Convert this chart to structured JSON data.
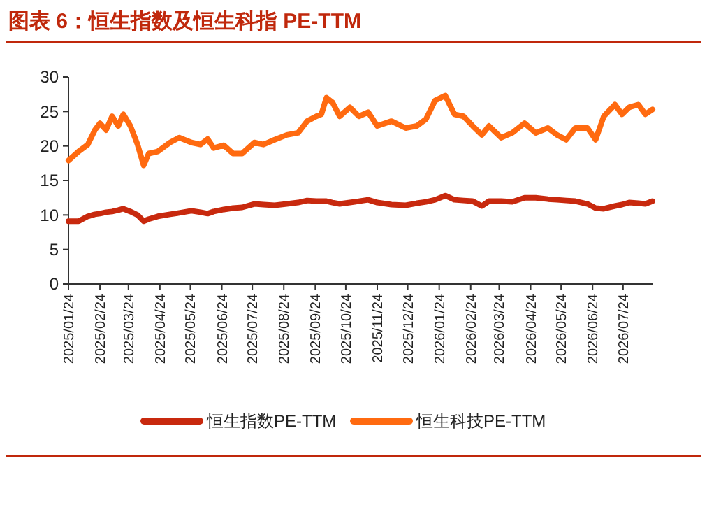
{
  "chart_data": {
    "type": "line",
    "title": "图表 6：恒生指数及恒生科指 PE-TTM",
    "x": [
      "2025-01-24",
      "2025-02-03",
      "2025-02-12",
      "2025-02-19",
      "2025-02-24",
      "2025-03-02",
      "2025-03-08",
      "2025-03-14",
      "2025-03-19",
      "2025-03-26",
      "2025-04-02",
      "2025-04-08",
      "2025-04-13",
      "2025-04-22",
      "2025-05-04",
      "2025-05-13",
      "2025-05-25",
      "2025-06-03",
      "2025-06-10",
      "2025-06-16",
      "2025-06-26",
      "2025-07-05",
      "2025-07-14",
      "2025-07-26",
      "2025-08-04",
      "2025-08-15",
      "2025-08-27",
      "2025-09-07",
      "2025-09-16",
      "2025-09-25",
      "2025-09-30",
      "2025-10-05",
      "2025-10-11",
      "2025-10-18",
      "2025-10-28",
      "2025-11-06",
      "2025-11-15",
      "2025-11-24",
      "2025-12-08",
      "2025-12-22",
      "2026-01-02",
      "2026-01-11",
      "2026-01-20",
      "2026-01-30",
      "2026-02-08",
      "2026-02-17",
      "2026-02-26",
      "2026-03-07",
      "2026-03-14",
      "2026-03-26",
      "2026-04-06",
      "2026-04-18",
      "2026-04-29",
      "2026-05-11",
      "2026-05-20",
      "2026-05-29",
      "2026-06-07",
      "2026-06-19",
      "2026-06-27",
      "2026-07-05",
      "2026-07-16",
      "2026-07-23",
      "2026-07-30",
      "2026-08-08",
      "2026-08-15",
      "2026-08-22"
    ],
    "series": [
      {
        "name": "恒生指数PE-TTM",
        "color": "#c8290e",
        "values": [
          9.1,
          9.1,
          9.8,
          10.1,
          10.2,
          10.4,
          10.5,
          10.7,
          10.9,
          10.5,
          10.0,
          9.1,
          9.4,
          9.8,
          10.1,
          10.3,
          10.6,
          10.4,
          10.2,
          10.5,
          10.8,
          11.0,
          11.1,
          11.6,
          11.5,
          11.4,
          11.6,
          11.8,
          12.1,
          12.0,
          12.0,
          12.0,
          11.8,
          11.6,
          11.8,
          12.0,
          12.2,
          11.8,
          11.5,
          11.4,
          11.7,
          11.9,
          12.2,
          12.8,
          12.2,
          12.1,
          12.0,
          11.3,
          12.0,
          12.0,
          11.9,
          12.5,
          12.5,
          12.3,
          12.2,
          12.1,
          12.0,
          11.6,
          11.0,
          10.9,
          11.3,
          11.5,
          11.8,
          11.7,
          11.6,
          12.0
        ]
      },
      {
        "name": "恒生科技PE-TTM",
        "color": "#ff6a10",
        "values": [
          17.9,
          19.2,
          20.2,
          22.3,
          23.3,
          22.3,
          24.3,
          22.9,
          24.6,
          22.9,
          20.2,
          17.2,
          18.9,
          19.2,
          20.5,
          21.2,
          20.5,
          20.2,
          21.0,
          19.7,
          20.1,
          18.9,
          18.9,
          20.5,
          20.2,
          20.9,
          21.6,
          21.9,
          23.6,
          24.3,
          24.6,
          27.0,
          26.3,
          24.3,
          25.6,
          24.3,
          24.9,
          22.9,
          23.6,
          22.6,
          22.9,
          23.9,
          26.6,
          27.3,
          24.6,
          24.3,
          22.9,
          21.6,
          22.9,
          21.2,
          21.9,
          23.3,
          21.9,
          22.6,
          21.6,
          20.9,
          22.6,
          22.6,
          20.9,
          24.3,
          26.0,
          24.6,
          25.6,
          26.0,
          24.6,
          25.3
        ]
      }
    ],
    "xlim": [
      "2025-01-24",
      "2026-08-22"
    ],
    "xticks": [
      {
        "value": "2025-01-24",
        "label": "2025/01/24"
      },
      {
        "value": "2025-02-24",
        "label": "2025/02/24"
      },
      {
        "value": "2025-03-24",
        "label": "2025/03/24"
      },
      {
        "value": "2025-04-24",
        "label": "2025/04/24"
      },
      {
        "value": "2025-05-24",
        "label": "2025/05/24"
      },
      {
        "value": "2025-06-24",
        "label": "2025/06/24"
      },
      {
        "value": "2025-07-24",
        "label": "2025/07/24"
      },
      {
        "value": "2025-08-24",
        "label": "2025/08/24"
      },
      {
        "value": "2025-09-24",
        "label": "2025/09/24"
      },
      {
        "value": "2025-10-24",
        "label": "2025/10/24"
      },
      {
        "value": "2025-11-24",
        "label": "2025/11/24"
      },
      {
        "value": "2025-12-24",
        "label": "2025/12/24"
      },
      {
        "value": "2026-01-24",
        "label": "2026/01/24"
      },
      {
        "value": "2026-02-24",
        "label": "2026/02/24"
      },
      {
        "value": "2026-03-24",
        "label": "2026/03/24"
      },
      {
        "value": "2026-04-24",
        "label": "2026/04/24"
      },
      {
        "value": "2026-05-24",
        "label": "2026/05/24"
      },
      {
        "value": "2026-06-24",
        "label": "2026/06/24"
      },
      {
        "value": "2026-07-24",
        "label": "2026/07/24"
      }
    ],
    "ylim": [
      0,
      30
    ],
    "yticks": [
      0,
      5,
      10,
      15,
      20,
      25,
      30
    ],
    "grid": false,
    "legend": "bottom",
    "marker": "none",
    "line_style": "solid"
  }
}
